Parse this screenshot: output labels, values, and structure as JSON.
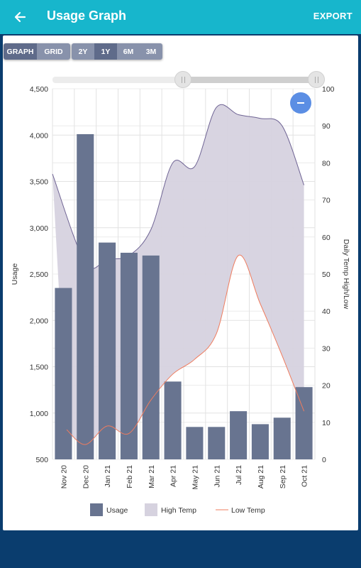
{
  "appbar": {
    "title": "Usage Graph",
    "export_label": "EXPORT",
    "back_icon": "arrow-left-icon",
    "color": "#17b6cc"
  },
  "view_toggle": {
    "options": [
      "GRAPH",
      "GRID"
    ],
    "selected": "GRAPH"
  },
  "range_toggle": {
    "options": [
      "2Y",
      "1Y",
      "6M",
      "3M"
    ],
    "selected": "1Y"
  },
  "range_slider": {
    "start": 0.5,
    "end": 1.0
  },
  "zoom_button": {
    "icon": "minus-icon"
  },
  "chart_data": {
    "type": "bar",
    "categories": [
      "Nov 20",
      "Dec 20",
      "Jan 21",
      "Feb 21",
      "Mar 21",
      "Apr 21",
      "May 21",
      "Jun 21",
      "Jul 21",
      "Aug 21",
      "Sep 21",
      "Oct 21"
    ],
    "series": [
      {
        "name": "Usage",
        "type": "bar",
        "axis": "left",
        "color": "#687490",
        "values": [
          2350,
          4010,
          2840,
          2730,
          2700,
          1340,
          850,
          850,
          1020,
          880,
          950,
          1280
        ]
      },
      {
        "name": "High Temp",
        "type": "area",
        "axis": "right",
        "color": "#d6d2df",
        "values": [
          77,
          53,
          54,
          55,
          62,
          80,
          79,
          95,
          93,
          92,
          90,
          74
        ]
      },
      {
        "name": "Low Temp",
        "type": "line",
        "axis": "right",
        "color": "#ef7c5e",
        "values": [
          8,
          4,
          9,
          7,
          16,
          23,
          27,
          34,
          55,
          42,
          28,
          13
        ]
      }
    ],
    "ylabel": "Usage",
    "y2label": "Daily Temp High/Low",
    "ylim": [
      500,
      4500
    ],
    "y2lim": [
      0,
      100
    ],
    "yticks": [
      "500",
      "1,000",
      "1,500",
      "2,000",
      "2,500",
      "3,000",
      "3,500",
      "4,000",
      "4,500"
    ],
    "y2ticks": [
      "0",
      "10",
      "20",
      "30",
      "40",
      "50",
      "60",
      "70",
      "80",
      "90",
      "100"
    ],
    "grid": true,
    "legend": "bottom"
  }
}
